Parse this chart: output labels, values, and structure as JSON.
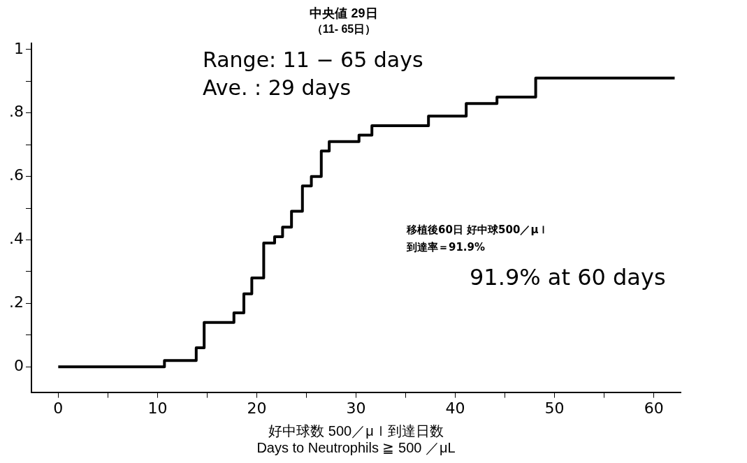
{
  "chart_data": {
    "type": "step",
    "title": "中央値 29日",
    "subtitle": "（11- 65日）",
    "xlabel": "好中球数 500／μｌ到達日数\nDays to Neutrophils ≧ 500 ／μL",
    "annotations": [
      "Range: 11 − 65 days",
      "Ave. : 29 days",
      "移植後60日 好中球500／μｌ",
      "到達率＝91.9%",
      "91.9% at 60 days"
    ],
    "series": [
      {
        "color": "#000000",
        "x": [
          0,
          10.7,
          13.9,
          14.7,
          17.7,
          18.7,
          19.5,
          20.7,
          21.8,
          22.6,
          23.5,
          24.6,
          25.5,
          26.5,
          27.3,
          30.3,
          31.6,
          37.3,
          41.1,
          44.2,
          48.1,
          62.1
        ],
        "values": [
          0,
          0.02,
          0.06,
          0.14,
          0.17,
          0.23,
          0.28,
          0.39,
          0.41,
          0.44,
          0.49,
          0.57,
          0.6,
          0.68,
          0.71,
          0.73,
          0.76,
          0.79,
          0.83,
          0.85,
          0.91,
          0.91
        ]
      }
    ],
    "xlim": [
      -2.7,
      62.7
    ],
    "xticks": [
      0,
      {
        "value": 5,
        "label": null
      },
      10,
      {
        "value": 15,
        "label": null
      },
      20,
      {
        "value": 25,
        "label": null
      },
      30,
      {
        "value": 35,
        "label": null
      },
      40,
      {
        "value": 45,
        "label": null
      },
      50,
      {
        "value": 55,
        "label": null
      },
      60
    ],
    "ylim": [
      -0.08,
      1.02
    ],
    "yticks": [
      0,
      {
        "value": 0.1,
        "label": null
      },
      {
        "value": 0.2,
        "label": ".2"
      },
      {
        "value": 0.3,
        "label": null
      },
      {
        "value": 0.4,
        "label": ".4"
      },
      {
        "value": 0.5,
        "label": null
      },
      {
        "value": 0.6,
        "label": ".6"
      },
      {
        "value": 0.7,
        "label": null
      },
      {
        "value": 0.8,
        "label": ".8"
      },
      {
        "value": 0.9,
        "label": null
      },
      1
    ],
    "grid": false,
    "legend": false,
    "marker": "none",
    "line_style": "solid"
  }
}
